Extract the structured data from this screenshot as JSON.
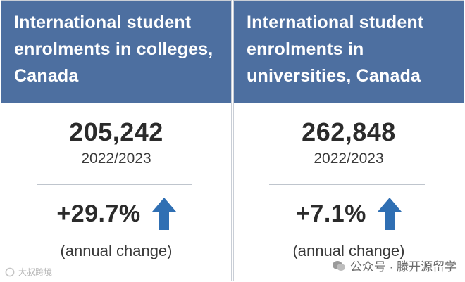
{
  "cards": [
    {
      "title": "International student enrolments in colleges, Canada",
      "value": "205,242",
      "period": "2022/2023",
      "change": "+29.7%",
      "change_label": "(annual change)",
      "arrow_icon": "up-arrow-icon"
    },
    {
      "title": "International student enrolments in universities, Canada",
      "value": "262,848",
      "period": "2022/2023",
      "change": "+7.1%",
      "change_label": "(annual change)",
      "arrow_icon": "up-arrow-icon"
    }
  ],
  "colors": {
    "header_bg": "#4d6fa0",
    "arrow": "#2f6fb3",
    "text_dark": "#2b2b2b"
  },
  "watermarks": {
    "left_text": "大叔跨境",
    "right_text": "公众号 · 滕开源留学"
  }
}
